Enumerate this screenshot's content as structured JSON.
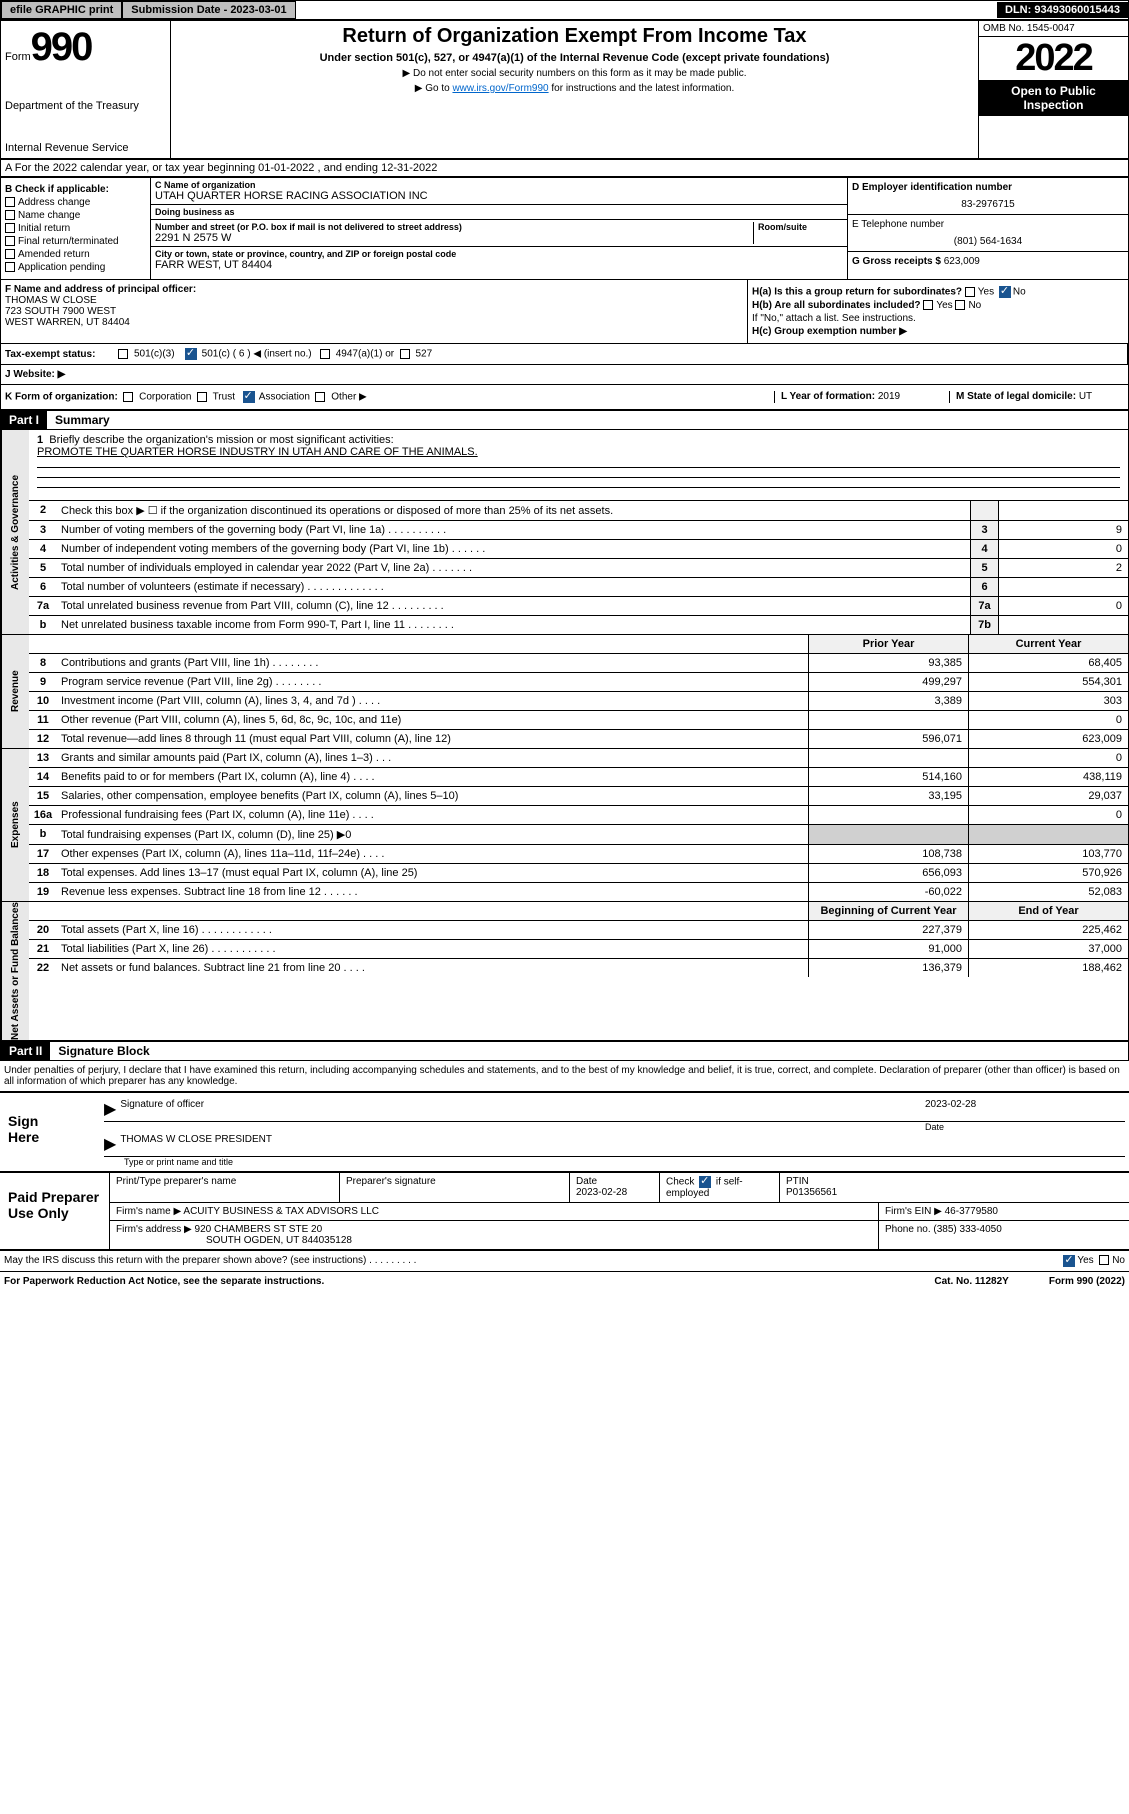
{
  "topbar": {
    "efile_label": "efile GRAPHIC print",
    "sub_label": "Submission Date - 2023-03-01",
    "dln": "DLN: 93493060015443"
  },
  "header": {
    "form_word": "Form",
    "form_num": "990",
    "dept": "Department of the Treasury",
    "irs": "Internal Revenue Service",
    "title": "Return of Organization Exempt From Income Tax",
    "subtitle": "Under section 501(c), 527, or 4947(a)(1) of the Internal Revenue Code (except private foundations)",
    "note1": "▶ Do not enter social security numbers on this form as it may be made public.",
    "note2_pre": "▶ Go to ",
    "note2_link": "www.irs.gov/Form990",
    "note2_post": " for instructions and the latest information.",
    "omb": "OMB No. 1545-0047",
    "year": "2022",
    "open_public": "Open to Public Inspection"
  },
  "line_a": "A For the 2022 calendar year, or tax year beginning 01-01-2022    , and ending 12-31-2022",
  "box_b": {
    "header": "B Check if applicable:",
    "opts": [
      "Address change",
      "Name change",
      "Initial return",
      "Final return/terminated",
      "Amended return",
      "Application pending"
    ]
  },
  "box_c": {
    "name_label": "C Name of organization",
    "name": "UTAH QUARTER HORSE RACING ASSOCIATION INC",
    "dba_label": "Doing business as",
    "dba": "",
    "addr_label": "Number and street (or P.O. box if mail is not delivered to street address)",
    "room_label": "Room/suite",
    "addr": "2291 N 2575 W",
    "city_label": "City or town, state or province, country, and ZIP or foreign postal code",
    "city": "FARR WEST, UT  84404"
  },
  "box_d": {
    "label": "D Employer identification number",
    "val": "83-2976715"
  },
  "box_e": {
    "label": "E Telephone number",
    "val": "(801) 564-1634"
  },
  "box_g": {
    "label": "G Gross receipts $",
    "val": "623,009"
  },
  "box_f": {
    "label": "F Name and address of principal officer:",
    "name": "THOMAS W CLOSE",
    "addr1": "723 SOUTH 7900 WEST",
    "addr2": "WEST WARREN, UT  84404"
  },
  "box_h": {
    "ha": "H(a)  Is this a group return for subordinates?",
    "hb": "H(b)  Are all subordinates included?",
    "hb_note": "If \"No,\" attach a list. See instructions.",
    "hc": "H(c)  Group exemption number ▶",
    "yes": "Yes",
    "no": "No"
  },
  "row_i": {
    "label": "Tax-exempt status:",
    "o1": "501(c)(3)",
    "o2": "501(c) ( 6 ) ◀ (insert no.)",
    "o3": "4947(a)(1) or",
    "o4": "527"
  },
  "row_j": {
    "label": "J    Website: ▶",
    "val": ""
  },
  "row_k": {
    "label": "K Form of organization:",
    "o1": "Corporation",
    "o2": "Trust",
    "o3": "Association",
    "o4": "Other ▶",
    "l_label": "L Year of formation:",
    "l_val": "2019",
    "m_label": "M State of legal domicile:",
    "m_val": "UT"
  },
  "part1": {
    "num": "Part I",
    "title": "Summary"
  },
  "tabs": {
    "gov": "Activities & Governance",
    "rev": "Revenue",
    "exp": "Expenses",
    "net": "Net Assets or Fund Balances"
  },
  "line1": {
    "num": "1",
    "txt": "Briefly describe the organization's mission or most significant activities:",
    "mission": "PROMOTE THE QUARTER HORSE INDUSTRY IN UTAH AND CARE OF THE ANIMALS."
  },
  "gov_lines": [
    {
      "n": "2",
      "t": "Check this box ▶ ☐  if the organization discontinued its operations or disposed of more than 25% of its net assets.",
      "box": "",
      "v": ""
    },
    {
      "n": "3",
      "t": "Number of voting members of the governing body (Part VI, line 1a)   .    .    .    .    .    .    .    .    .    .",
      "box": "3",
      "v": "9"
    },
    {
      "n": "4",
      "t": "Number of independent voting members of the governing body (Part VI, line 1b)   .    .    .    .    .    .",
      "box": "4",
      "v": "0"
    },
    {
      "n": "5",
      "t": "Total number of individuals employed in calendar year 2022 (Part V, line 2a)   .    .    .    .    .    .    .",
      "box": "5",
      "v": "2"
    },
    {
      "n": "6",
      "t": "Total number of volunteers (estimate if necessary)   .    .    .    .    .    .    .    .    .    .    .    .    .",
      "box": "6",
      "v": ""
    },
    {
      "n": "7a",
      "t": "Total unrelated business revenue from Part VIII, column (C), line 12   .    .    .    .    .    .    .    .    .",
      "box": "7a",
      "v": "0"
    },
    {
      "n": "b",
      "t": "Net unrelated business taxable income from Form 990-T, Part I, line 11   .    .    .    .    .    .    .    .",
      "box": "7b",
      "v": ""
    }
  ],
  "year_hdr": {
    "prior": "Prior Year",
    "curr": "Current Year"
  },
  "rev_lines": [
    {
      "n": "8",
      "t": "Contributions and grants (Part VIII, line 1h)   .    .    .    .    .    .    .    .",
      "p": "93,385",
      "c": "68,405"
    },
    {
      "n": "9",
      "t": "Program service revenue (Part VIII, line 2g)   .    .    .    .    .    .    .    .",
      "p": "499,297",
      "c": "554,301"
    },
    {
      "n": "10",
      "t": "Investment income (Part VIII, column (A), lines 3, 4, and 7d )   .    .    .    .",
      "p": "3,389",
      "c": "303"
    },
    {
      "n": "11",
      "t": "Other revenue (Part VIII, column (A), lines 5, 6d, 8c, 9c, 10c, and 11e)",
      "p": "",
      "c": "0"
    },
    {
      "n": "12",
      "t": "Total revenue—add lines 8 through 11 (must equal Part VIII, column (A), line 12)",
      "p": "596,071",
      "c": "623,009"
    }
  ],
  "exp_lines": [
    {
      "n": "13",
      "t": "Grants and similar amounts paid (Part IX, column (A), lines 1–3)   .    .    .",
      "p": "",
      "c": "0"
    },
    {
      "n": "14",
      "t": "Benefits paid to or for members (Part IX, column (A), line 4)   .    .    .    .",
      "p": "514,160",
      "c": "438,119"
    },
    {
      "n": "15",
      "t": "Salaries, other compensation, employee benefits (Part IX, column (A), lines 5–10)",
      "p": "33,195",
      "c": "29,037"
    },
    {
      "n": "16a",
      "t": "Professional fundraising fees (Part IX, column (A), line 11e)   .    .    .    .",
      "p": "",
      "c": "0"
    },
    {
      "n": "b",
      "t": "Total fundraising expenses (Part IX, column (D), line 25) ▶0",
      "p": "gray",
      "c": "gray"
    },
    {
      "n": "17",
      "t": "Other expenses (Part IX, column (A), lines 11a–11d, 11f–24e)   .    .    .    .",
      "p": "108,738",
      "c": "103,770"
    },
    {
      "n": "18",
      "t": "Total expenses. Add lines 13–17 (must equal Part IX, column (A), line 25)",
      "p": "656,093",
      "c": "570,926"
    },
    {
      "n": "19",
      "t": "Revenue less expenses. Subtract line 18 from line 12   .    .    .    .    .    .",
      "p": "-60,022",
      "c": "52,083"
    }
  ],
  "bal_hdr": {
    "beg": "Beginning of Current Year",
    "end": "End of Year"
  },
  "net_lines": [
    {
      "n": "20",
      "t": "Total assets (Part X, line 16)   .    .    .    .    .    .    .    .    .    .    .    .",
      "p": "227,379",
      "c": "225,462"
    },
    {
      "n": "21",
      "t": "Total liabilities (Part X, line 26)   .    .    .    .    .    .    .    .    .    .    .",
      "p": "91,000",
      "c": "37,000"
    },
    {
      "n": "22",
      "t": "Net assets or fund balances. Subtract line 21 from line 20   .    .    .    .",
      "p": "136,379",
      "c": "188,462"
    }
  ],
  "part2": {
    "num": "Part II",
    "title": "Signature Block"
  },
  "penalty": "Under penalties of perjury, I declare that I have examined this return, including accompanying schedules and statements, and to the best of my knowledge and belief, it is true, correct, and complete. Declaration of preparer (other than officer) is based on all information of which preparer has any knowledge.",
  "sign": {
    "here": "Sign Here",
    "sig_label": "Signature of officer",
    "date_label": "Date",
    "date": "2023-02-28",
    "name": "THOMAS W CLOSE  PRESIDENT",
    "name_label": "Type or print name and title"
  },
  "paid": {
    "here": "Paid Preparer Use Only",
    "h1": "Print/Type preparer's name",
    "h2": "Preparer's signature",
    "h3": "Date",
    "h3v": "2023-02-28",
    "h4a": "Check",
    "h4b": "if self-employed",
    "h5": "PTIN",
    "h5v": "P01356561",
    "firm_label": "Firm's name      ▶",
    "firm": "ACUITY BUSINESS & TAX ADVISORS LLC",
    "ein_label": "Firm's EIN ▶",
    "ein": "46-3779580",
    "addr_label": "Firm's address ▶",
    "addr1": "920 CHAMBERS ST STE 20",
    "addr2": "SOUTH OGDEN, UT  844035128",
    "phone_label": "Phone no.",
    "phone": "(385) 333-4050"
  },
  "may_irs": "May the IRS discuss this return with the preparer shown above? (see instructions)   .    .    .    .    .    .    .    .    .",
  "may_yes": "Yes",
  "may_no": "No",
  "footer": {
    "left": "For Paperwork Reduction Act Notice, see the separate instructions.",
    "mid": "Cat. No. 11282Y",
    "right": "Form 990 (2022)"
  }
}
